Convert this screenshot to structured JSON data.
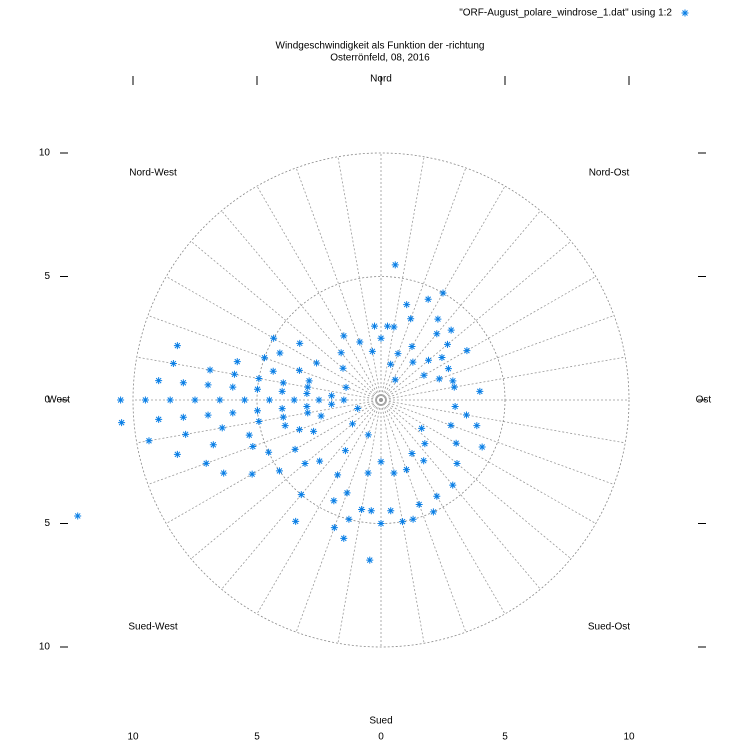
{
  "chart_data": {
    "type": "polar_scatter",
    "title": "Windgeschwindigkeit als Funktion der -richtung",
    "subtitle": "Osterrönfeld, 08, 2016",
    "direction_labels": [
      "Nord",
      "Nord-Ost",
      "Ost",
      "Sued-Ost",
      "Sued",
      "Sued-West",
      "West",
      "Nord-West"
    ],
    "xlim": [
      -12,
      12
    ],
    "ylim": [
      -12,
      12
    ],
    "xticks": [
      {
        "value": -10,
        "label": "10"
      },
      {
        "value": -5,
        "label": "5"
      },
      0,
      5,
      10
    ],
    "yticks": [
      10,
      5,
      0,
      {
        "value": -5,
        "label": "5"
      },
      {
        "value": -10,
        "label": "10"
      }
    ],
    "rticks": [
      5,
      10
    ],
    "angle_grid_step": 10,
    "legend": "top-right",
    "series": [
      {
        "name": "\"ORF-August_polare_windrose_1.dat\" using 1:2",
        "color": "#0a7fe6",
        "theta": [
          270,
          270,
          270,
          270,
          270,
          270,
          270,
          270,
          270,
          270,
          275,
          275,
          275,
          275,
          275,
          275,
          275,
          275,
          265,
          265,
          265,
          265,
          265,
          265,
          265,
          265,
          265,
          280,
          280,
          280,
          280,
          280,
          280,
          260,
          260,
          260,
          260,
          260,
          260,
          285,
          285,
          285,
          285,
          255,
          255,
          255,
          255,
          255,
          290,
          290,
          250,
          250,
          250,
          245,
          245,
          245,
          295,
          300,
          300,
          305,
          240,
          240,
          235,
          230,
          225,
          249,
          6,
          10,
          15,
          20,
          25,
          30,
          35,
          40,
          45,
          50,
          55,
          60,
          20,
          30,
          40,
          50,
          15,
          35,
          60,
          65,
          70,
          75,
          80,
          85,
          5,
          0,
          355,
          350,
          340,
          330,
          100,
          110,
          120,
          130,
          140,
          150,
          155,
          160,
          165,
          170,
          175,
          180,
          185,
          190,
          195,
          200,
          205,
          210,
          150,
          160,
          170,
          180,
          190,
          145,
          135,
          125,
          184,
          195,
          200,
          115,
          105,
          95,
          230,
          250,
          290,
          310,
          320,
          200,
          215,
          220,
          215
        ],
        "r": [
          10.5,
          9.5,
          8.5,
          7.5,
          6.5,
          5.5,
          4.5,
          3.5,
          2.5,
          1.5,
          9,
          8,
          7,
          6,
          5,
          4,
          3,
          2,
          10.5,
          9,
          8,
          7,
          6,
          5,
          4,
          3,
          2,
          8.5,
          7,
          6,
          5,
          4,
          3,
          9.5,
          8,
          6.5,
          5,
          4,
          3,
          8.5,
          6,
          4.5,
          3,
          8.5,
          7,
          5.5,
          4,
          2.5,
          5,
          3.5,
          7.5,
          5.5,
          3.5,
          7,
          5,
          3,
          4.5,
          5,
          3,
          4,
          6,
          4,
          5,
          4,
          3.5,
          13.1,
          5.5,
          3,
          4,
          3.5,
          4.5,
          5,
          4,
          3.5,
          4,
          3.5,
          3,
          4,
          2,
          2.5,
          2,
          2.5,
          1.5,
          1,
          2,
          3,
          2.5,
          3,
          3,
          4,
          3,
          2.5,
          3,
          2,
          2.5,
          3,
          3.5,
          3,
          3.5,
          4,
          4.5,
          4.5,
          5,
          4.5,
          5,
          5,
          4.5,
          5,
          4.5,
          4.5,
          5,
          4,
          4.5,
          3.5,
          2.5,
          3,
          3,
          2.5,
          3,
          3,
          2.5,
          2,
          6.5,
          5.8,
          5.5,
          4.5,
          4,
          3,
          1.5,
          1,
          1.5,
          2,
          2.5,
          1.5,
          2.5,
          5,
          6
        ]
      }
    ]
  }
}
